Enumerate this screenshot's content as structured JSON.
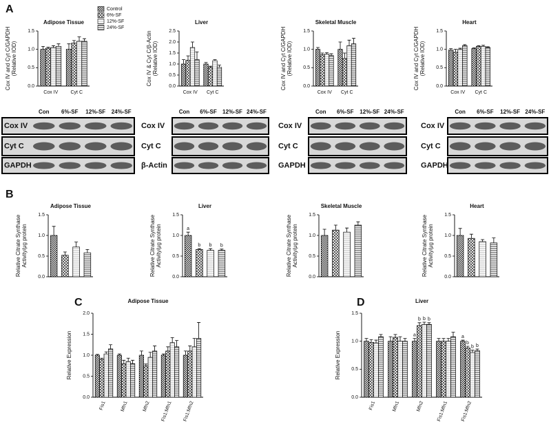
{
  "panels": [
    "A",
    "B",
    "C",
    "D"
  ],
  "chart_data": [
    {
      "type": "bar",
      "title": "Adipose Tissue",
      "ylabel": [
        "Cox IV and Cyt C/GAPDH",
        "(Relative  IOD)"
      ],
      "categories": [
        "Cox IV",
        "Cyt C"
      ],
      "legend": true,
      "series": [
        {
          "name": "Control",
          "pattern": "checker",
          "values": [
            1.0,
            1.0
          ],
          "errors": [
            0.08,
            0.15
          ]
        },
        {
          "name": "6%-SF",
          "pattern": "cross",
          "values": [
            1.03,
            1.17
          ],
          "errors": [
            0.03,
            0.07
          ]
        },
        {
          "name": "12%-SF",
          "pattern": "hlight",
          "values": [
            1.05,
            1.22
          ],
          "errors": [
            0.05,
            0.12
          ]
        },
        {
          "name": "24%-SF",
          "pattern": "hline",
          "values": [
            1.08,
            1.22
          ],
          "errors": [
            0.07,
            0.07
          ]
        }
      ],
      "ylim": [
        0,
        1.5
      ],
      "yticks": [
        {
          "value": 0,
          "label": "0.0"
        },
        0.5,
        {
          "value": 1,
          "label": "1.0"
        },
        1.5
      ]
    },
    {
      "type": "bar",
      "title": "Liver",
      "ylabel": [
        "Cox IV & Cyt C/β-Actin",
        "(Relative IOD)"
      ],
      "categories": [
        "Cox IV",
        "Cyt C"
      ],
      "series": [
        {
          "pattern": "checker",
          "values": [
            1.0,
            1.0
          ],
          "errors": [
            0.2,
            0.07
          ]
        },
        {
          "pattern": "cross",
          "values": [
            1.17,
            0.85
          ],
          "errors": [
            0.2,
            0.05
          ]
        },
        {
          "pattern": "hlight",
          "values": [
            1.75,
            1.15
          ],
          "errors": [
            0.25,
            0.05
          ]
        },
        {
          "pattern": "hline",
          "values": [
            1.2,
            0.85
          ],
          "errors": [
            0.35,
            0.1
          ]
        }
      ],
      "ylim": [
        0,
        2.5
      ],
      "yticks": [
        {
          "value": 0,
          "label": "0.0"
        },
        0.5,
        {
          "value": 1,
          "label": "1.0"
        },
        1.5,
        {
          "value": 2,
          "label": "2.0"
        },
        2.5
      ]
    },
    {
      "type": "bar",
      "title": "Skeletal Muscle",
      "ylabel": [
        "Cox IV and Cyt C/GAPDH",
        "(Relative IOD)"
      ],
      "categories": [
        "Cox IV",
        "Cyt C"
      ],
      "series": [
        {
          "pattern": "checker",
          "values": [
            1.0,
            1.0
          ],
          "errors": [
            0.05,
            0.2
          ]
        },
        {
          "pattern": "cross",
          "values": [
            0.85,
            0.75
          ],
          "errors": [
            0.05,
            0.15
          ]
        },
        {
          "pattern": "hlight",
          "values": [
            0.87,
            1.1
          ],
          "errors": [
            0.04,
            0.15
          ]
        },
        {
          "pattern": "hline",
          "values": [
            0.83,
            1.15
          ],
          "errors": [
            0.05,
            0.15
          ]
        }
      ],
      "ylim": [
        0,
        1.5
      ],
      "yticks": [
        {
          "value": 0,
          "label": "0.0"
        },
        0.5,
        {
          "value": 1,
          "label": "1.0"
        },
        1.5
      ]
    },
    {
      "type": "bar",
      "title": "Heart",
      "ylabel": [
        "Cox IV and Cyt C/GAPDH",
        "(Relative IOD)"
      ],
      "categories": [
        "Cox IV",
        "Cyt C"
      ],
      "series": [
        {
          "pattern": "checker",
          "values": [
            0.98,
            1.02
          ],
          "errors": [
            0.04,
            0.02
          ]
        },
        {
          "pattern": "cross",
          "values": [
            0.92,
            1.08
          ],
          "errors": [
            0.08,
            0.02
          ]
        },
        {
          "pattern": "hlight",
          "values": [
            1.0,
            1.08
          ],
          "errors": [
            0.03,
            0.03
          ]
        },
        {
          "pattern": "hline",
          "values": [
            1.1,
            1.05
          ],
          "errors": [
            0.03,
            0.02
          ]
        }
      ],
      "ylim": [
        0,
        1.5
      ],
      "yticks": [
        {
          "value": 0,
          "label": "0.0"
        },
        0.5,
        {
          "value": 1,
          "label": "1.0"
        },
        1.5
      ]
    },
    {
      "type": "bar",
      "title": "Adipose Tissue",
      "ylabel": [
        "Relative Citrate Synthase",
        "Activity/μg protein"
      ],
      "categories": [
        null
      ],
      "series": [
        {
          "pattern": "checker",
          "values": [
            1.0
          ],
          "errors": [
            0.22
          ]
        },
        {
          "pattern": "cross",
          "values": [
            0.52
          ],
          "errors": [
            0.08
          ]
        },
        {
          "pattern": "hlight",
          "values": [
            0.72
          ],
          "errors": [
            0.12
          ]
        },
        {
          "pattern": "hline",
          "values": [
            0.58
          ],
          "errors": [
            0.08
          ]
        }
      ],
      "ylim": [
        0,
        1.5
      ],
      "yticks": [
        {
          "value": 0,
          "label": "0.0"
        },
        0.5,
        {
          "value": 1,
          "label": "1.0"
        },
        1.5
      ]
    },
    {
      "type": "bar",
      "title": "Liver",
      "ylabel": [
        "Relative Citrate Synthase",
        "Activity/μg protein"
      ],
      "categories": [
        null
      ],
      "series": [
        {
          "pattern": "checker",
          "values": [
            1.0
          ],
          "errors": [
            0.08
          ]
        },
        {
          "pattern": "cross",
          "values": [
            0.66
          ],
          "errors": [
            0.02
          ]
        },
        {
          "pattern": "hlight",
          "values": [
            0.64
          ],
          "errors": [
            0.04
          ]
        },
        {
          "pattern": "hline",
          "values": [
            0.64
          ],
          "errors": [
            0.03
          ]
        }
      ],
      "annotations": [
        {
          "text": "a",
          "category": 0,
          "series": 0
        },
        {
          "text": "b",
          "category": 0,
          "series": 1
        },
        {
          "text": "b",
          "category": 0,
          "series": 2
        },
        {
          "text": "b",
          "category": 0,
          "series": 3
        }
      ],
      "ylim": [
        0,
        1.5
      ],
      "yticks": [
        {
          "value": 0,
          "label": "0.0"
        },
        0.5,
        {
          "value": 1,
          "label": "1.0"
        },
        1.5
      ]
    },
    {
      "type": "bar",
      "title": "Skeletal Muscle",
      "ylabel": [
        "Relative Citrate Synthase",
        "Activity/μg protein"
      ],
      "categories": [
        null
      ],
      "series": [
        {
          "pattern": "checker",
          "values": [
            1.0
          ],
          "errors": [
            0.15
          ]
        },
        {
          "pattern": "cross",
          "values": [
            1.13
          ],
          "errors": [
            0.12
          ]
        },
        {
          "pattern": "hlight",
          "values": [
            1.08
          ],
          "errors": [
            0.1
          ]
        },
        {
          "pattern": "hline",
          "values": [
            1.25
          ],
          "errors": [
            0.08
          ]
        }
      ],
      "ylim": [
        0,
        1.5
      ],
      "yticks": [
        {
          "value": 0,
          "label": "0.0"
        },
        0.5,
        {
          "value": 1,
          "label": "1.0"
        },
        1.5
      ]
    },
    {
      "type": "bar",
      "title": "Heart",
      "ylabel": [
        "Relative Citrate Synthase",
        "Activity/μg protein"
      ],
      "categories": [
        null
      ],
      "series": [
        {
          "pattern": "checker",
          "values": [
            1.0
          ],
          "errors": [
            0.17
          ]
        },
        {
          "pattern": "cross",
          "values": [
            0.93
          ],
          "errors": [
            0.1
          ]
        },
        {
          "pattern": "hlight",
          "values": [
            0.85
          ],
          "errors": [
            0.05
          ]
        },
        {
          "pattern": "hline",
          "values": [
            0.82
          ],
          "errors": [
            0.12
          ]
        }
      ],
      "ylim": [
        0,
        1.5
      ],
      "yticks": [
        {
          "value": 0,
          "label": "0.0"
        },
        0.5,
        {
          "value": 1,
          "label": "1.0"
        },
        1.5
      ]
    },
    {
      "type": "bar",
      "title": "Adipose Tissue",
      "ylabel": [
        "Relative Expression"
      ],
      "categories": [
        "Fis1",
        "Mfn1",
        "Mfn2",
        "Fis1:Mfn1",
        "Fis1:Mfn2"
      ],
      "series": [
        {
          "pattern": "checker",
          "values": [
            1.0,
            1.0,
            1.0,
            1.0,
            1.0
          ],
          "errors": [
            0.02,
            0.03,
            0.1,
            0.03,
            0.1
          ]
        },
        {
          "pattern": "cross",
          "values": [
            0.9,
            0.8,
            0.75,
            1.1,
            1.1
          ],
          "errors": [
            0.03,
            0.08,
            0.04,
            0.1,
            0.12
          ]
        },
        {
          "pattern": "hlight",
          "values": [
            1.03,
            0.85,
            0.95,
            1.3,
            1.2
          ],
          "errors": [
            0.05,
            0.08,
            0.12,
            0.12,
            0.2
          ]
        },
        {
          "pattern": "hline",
          "values": [
            1.15,
            0.8,
            1.1,
            1.2,
            1.4
          ],
          "errors": [
            0.1,
            0.08,
            0.12,
            0.15,
            0.38
          ]
        }
      ],
      "ylim": [
        0,
        2
      ],
      "yticks": [
        {
          "value": 0,
          "label": "0.0"
        },
        0.5,
        {
          "value": 1,
          "label": "1.0"
        },
        1.5,
        {
          "value": 2,
          "label": "2.0"
        }
      ]
    },
    {
      "type": "bar",
      "title": "Liver",
      "ylabel": [
        "Relative Expression"
      ],
      "categories": [
        "Fis1",
        "Mfn1",
        "Mfn2",
        "Fis1:Mfn1",
        "Fis1:Mfn2"
      ],
      "series": [
        {
          "pattern": "checker",
          "values": [
            1.0,
            1.0,
            1.0,
            1.0,
            1.0
          ],
          "errors": [
            0.05,
            0.08,
            0.05,
            0.05,
            0.02
          ]
        },
        {
          "pattern": "cross",
          "values": [
            0.98,
            1.07,
            1.28,
            1.0,
            0.88
          ],
          "errors": [
            0.05,
            0.05,
            0.05,
            0.05,
            0.03
          ]
        },
        {
          "pattern": "hlight",
          "values": [
            0.97,
            1.0,
            1.3,
            1.0,
            0.8
          ],
          "errors": [
            0.05,
            0.08,
            0.04,
            0.05,
            0.04
          ]
        },
        {
          "pattern": "hline",
          "values": [
            1.08,
            1.0,
            1.3,
            1.08,
            0.83
          ],
          "errors": [
            0.04,
            0.05,
            0.03,
            0.08,
            0.03
          ]
        }
      ],
      "annotations": [
        {
          "text": "a",
          "category": 2,
          "series": 0
        },
        {
          "text": "b",
          "category": 2,
          "series": 1
        },
        {
          "text": "b",
          "category": 2,
          "series": 2
        },
        {
          "text": "b",
          "category": 2,
          "series": 3
        },
        {
          "text": "a",
          "category": 4,
          "series": 0
        },
        {
          "text": "b",
          "category": 4,
          "series": 1
        },
        {
          "text": "b",
          "category": 4,
          "series": 2
        },
        {
          "text": "b",
          "category": 4,
          "series": 3
        }
      ],
      "ylim": [
        0,
        1.5
      ],
      "yticks": [
        {
          "value": 0,
          "label": "0.0"
        },
        0.5,
        {
          "value": 1,
          "label": "1.0"
        },
        1.5
      ]
    }
  ],
  "blots": [
    {
      "lanes": [
        "Con",
        "6%-SF",
        "12%-SF",
        "24%-SF"
      ],
      "rows": [
        "Cox IV",
        "Cyt C",
        "GAPDH"
      ]
    },
    {
      "lanes": [
        "Con",
        "6%-SF",
        "12%-SF",
        "24%-SF"
      ],
      "rows": [
        "Cox IV",
        "Cyt C",
        "β-Actin"
      ]
    },
    {
      "lanes": [
        "Con",
        "6%-SF",
        "12%-SF",
        "24%-SF"
      ],
      "rows": [
        "Cox IV",
        "Cyt C",
        "GAPDH"
      ]
    },
    {
      "lanes": [
        "Con",
        "6%-SF",
        "12%-SF",
        "24%-SF"
      ],
      "rows": [
        "Cox IV",
        "Cyt C",
        "GAPDH"
      ]
    }
  ]
}
